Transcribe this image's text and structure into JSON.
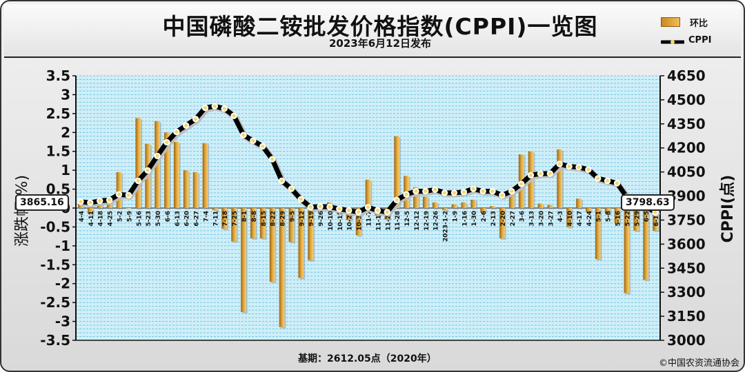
{
  "header": {
    "title": "中国磷酸二铵批发价格指数(CPPI)一览图",
    "subtitle": "2023年6月12日发布"
  },
  "legend": {
    "bar_label": "环比",
    "line_label": "CPPI"
  },
  "axes": {
    "left_label": "涨跌幅(%)",
    "right_label": "CPPI(点)"
  },
  "callouts": {
    "start": "3865.16",
    "end": "3798.63"
  },
  "footer": {
    "base": "基期：2612.05点（2020年）",
    "copyright": "©中国农资流通协会"
  },
  "colors": {
    "bar": "#e0a43a",
    "bar_dark": "#9a6412",
    "line": "#000000",
    "marker": "#f5d565",
    "plot_bg": "#cfeef8",
    "grid": "#5cc0e0"
  },
  "chart_data": {
    "type": "bar+line",
    "categories": [
      "4-4",
      "4-11",
      "4-18",
      "4-25",
      "5-2",
      "5-9",
      "5-16",
      "5-23",
      "5-30",
      "6-6",
      "6-13",
      "6-20",
      "6-27",
      "7-4",
      "7-11",
      "7-18",
      "7-25",
      "8-1",
      "8-8",
      "8-15",
      "8-22",
      "8-29",
      "9-5",
      "9-12",
      "9-19",
      "9-26",
      "10-10",
      "10-17",
      "10-24",
      "10-31",
      "11-7",
      "11-14",
      "11-21",
      "11-28",
      "12-5",
      "12-12",
      "12-19",
      "12-26",
      "2023-1-2",
      "1-9",
      "1-16",
      "1-30",
      "2-6",
      "2-13",
      "2-20",
      "2-27",
      "3-6",
      "3-13",
      "3-20",
      "3-27",
      "4-3",
      "4-10",
      "4-17",
      "4-24",
      "5-1",
      "5-8",
      "5-16",
      "5-22",
      "5-29",
      "6-5",
      "6-12"
    ],
    "series": [
      {
        "name": "环比",
        "axis": "left",
        "values": [
          0.2,
          -0.15,
          0.25,
          0.2,
          0.95,
          0.0,
          2.38,
          1.7,
          2.3,
          2.0,
          1.75,
          1.0,
          0.95,
          1.72,
          -0.05,
          -0.55,
          -0.88,
          -2.75,
          -0.8,
          -0.8,
          -1.95,
          -3.15,
          -0.9,
          -1.85,
          -1.38,
          -0.05,
          0.15,
          -0.15,
          -0.32,
          -0.72,
          0.75,
          -0.2,
          -0.3,
          1.9,
          0.85,
          0.55,
          0.3,
          0.15,
          -0.05,
          0.1,
          0.15,
          0.22,
          -0.12,
          0.05,
          -0.8,
          0.45,
          1.42,
          1.5,
          0.12,
          0.08,
          1.55,
          -0.5,
          0.25,
          -0.1,
          -1.35,
          -0.15,
          -0.4,
          -2.25,
          -0.6,
          -1.9,
          -0.6
        ]
      },
      {
        "name": "CPPI",
        "axis": "right",
        "values": [
          3865.16,
          3858,
          3870,
          3875,
          3910,
          3905,
          3995,
          4060,
          4150,
          4235,
          4300,
          4340,
          4380,
          4450,
          4460,
          4445,
          4400,
          4280,
          4245,
          4210,
          4130,
          3995,
          3945,
          3880,
          3830,
          3835,
          3832,
          3820,
          3810,
          3800,
          3830,
          3810,
          3800,
          3875,
          3910,
          3930,
          3930,
          3940,
          3920,
          3920,
          3925,
          3945,
          3930,
          3930,
          3905,
          3930,
          3975,
          4030,
          4040,
          4040,
          4100,
          4085,
          4080,
          4065,
          4010,
          3995,
          3980,
          3895,
          3875,
          3835,
          3798.63
        ]
      }
    ],
    "ylim_left": [
      -3.5,
      3.5
    ],
    "ylim_right": [
      3000,
      4650
    ],
    "left_ticks": [
      3.5,
      3,
      2.5,
      2,
      1.5,
      1,
      0.5,
      0,
      -0.5,
      -1,
      -1.5,
      -2,
      -2.5,
      -3,
      -3.5
    ],
    "right_ticks": [
      4650,
      4500,
      4350,
      4200,
      4050,
      3900,
      3750,
      3600,
      3450,
      3300,
      3150,
      3000
    ],
    "grid": true,
    "legend_position": "top-right"
  }
}
